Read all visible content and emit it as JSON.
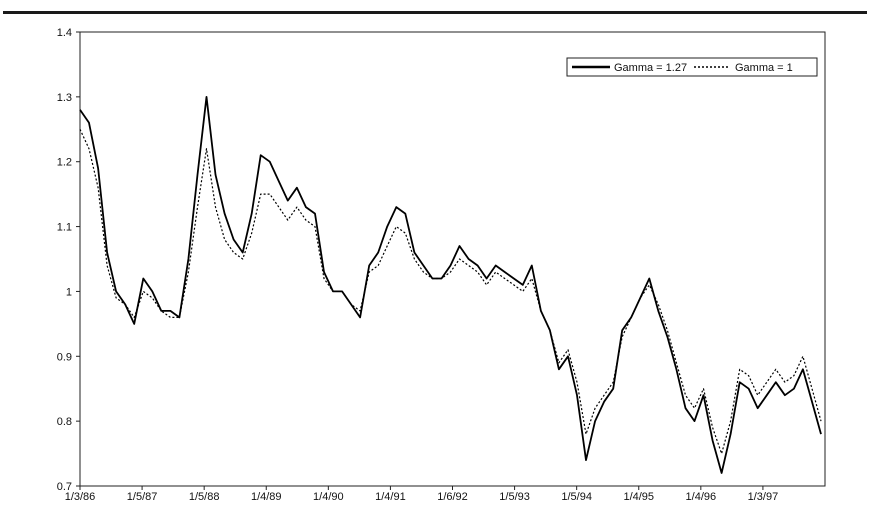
{
  "chart_data": {
    "type": "line",
    "title": "",
    "xlabel": "",
    "ylabel": "",
    "ylim": [
      0.7,
      1.4
    ],
    "y_ticks": [
      "0.7",
      "0.8",
      "0.9",
      "1",
      "1.1",
      "1.2",
      "1.3",
      "1.4"
    ],
    "x_tick_labels": [
      "1/3/86",
      "1/5/87",
      "1/5/88",
      "1/4/89",
      "1/4/90",
      "1/4/91",
      "1/6/92",
      "1/5/93",
      "1/5/94",
      "1/4/95",
      "1/4/96",
      "1/3/97"
    ],
    "grid": false,
    "legend_position": "top-right",
    "x": [
      "1/3/86",
      "2/86",
      "3/86",
      "4/86",
      "6/86",
      "8/86",
      "10/86",
      "11/86",
      "12/86",
      "1/5/87",
      "3/87",
      "5/87",
      "7/87",
      "8/87",
      "10/87",
      "11/87",
      "12/87",
      "1/5/88",
      "2/88",
      "3/88",
      "4/88",
      "6/88",
      "8/88",
      "10/88",
      "12/88",
      "1/4/89",
      "2/89",
      "3/89",
      "5/89",
      "7/89",
      "9/89",
      "10/89",
      "12/89",
      "1/4/90",
      "3/90",
      "5/90",
      "7/90",
      "9/90",
      "11/90",
      "12/90",
      "1/4/91",
      "3/91",
      "5/91",
      "7/91",
      "9/91",
      "11/91",
      "1/6/92",
      "3/92",
      "5/92",
      "7/92",
      "9/92",
      "11/92",
      "1/5/93",
      "3/93",
      "5/93",
      "7/93",
      "9/93",
      "11/93",
      "1/5/94",
      "3/94",
      "5/94",
      "7/94",
      "9/94",
      "11/94",
      "1/4/95",
      "3/95",
      "5/95",
      "7/95",
      "9/95",
      "10/95",
      "11/95",
      "12/95",
      "1/4/96",
      "3/96",
      "5/96",
      "7/96",
      "9/96",
      "11/96",
      "1/3/97",
      "3/97",
      "4/97",
      "6/97",
      "7/97"
    ],
    "series": [
      {
        "name": "Gamma = 1.27",
        "style": "solid",
        "color": "#000000",
        "values": [
          1.28,
          1.26,
          1.19,
          1.06,
          1.0,
          0.98,
          0.95,
          1.02,
          1.0,
          0.97,
          0.97,
          0.96,
          1.05,
          1.18,
          1.3,
          1.18,
          1.12,
          1.08,
          1.06,
          1.12,
          1.21,
          1.2,
          1.17,
          1.14,
          1.16,
          1.13,
          1.12,
          1.03,
          1.0,
          1.0,
          0.98,
          0.96,
          1.04,
          1.06,
          1.1,
          1.13,
          1.12,
          1.06,
          1.04,
          1.02,
          1.02,
          1.04,
          1.07,
          1.05,
          1.04,
          1.02,
          1.04,
          1.03,
          1.02,
          1.01,
          1.04,
          0.97,
          0.94,
          0.88,
          0.9,
          0.84,
          0.74,
          0.8,
          0.83,
          0.85,
          0.94,
          0.96,
          0.99,
          1.02,
          0.97,
          0.93,
          0.88,
          0.82,
          0.8,
          0.84,
          0.77,
          0.72,
          0.78,
          0.86,
          0.85,
          0.82,
          0.84,
          0.86,
          0.84,
          0.85,
          0.88,
          0.83,
          0.78
        ]
      },
      {
        "name": "Gamma = 1",
        "style": "dotted",
        "color": "#000000",
        "values": [
          1.25,
          1.22,
          1.16,
          1.04,
          0.99,
          0.98,
          0.96,
          1.0,
          0.99,
          0.97,
          0.96,
          0.96,
          1.03,
          1.13,
          1.22,
          1.13,
          1.08,
          1.06,
          1.05,
          1.09,
          1.15,
          1.15,
          1.13,
          1.11,
          1.13,
          1.11,
          1.1,
          1.02,
          1.0,
          1.0,
          0.98,
          0.97,
          1.03,
          1.04,
          1.07,
          1.1,
          1.09,
          1.05,
          1.03,
          1.02,
          1.02,
          1.03,
          1.05,
          1.04,
          1.03,
          1.01,
          1.03,
          1.02,
          1.01,
          1.0,
          1.02,
          0.97,
          0.94,
          0.89,
          0.91,
          0.86,
          0.78,
          0.82,
          0.84,
          0.86,
          0.93,
          0.96,
          0.99,
          1.01,
          0.98,
          0.94,
          0.89,
          0.84,
          0.82,
          0.85,
          0.79,
          0.75,
          0.8,
          0.88,
          0.87,
          0.84,
          0.86,
          0.88,
          0.86,
          0.87,
          0.9,
          0.85,
          0.8
        ]
      }
    ]
  }
}
